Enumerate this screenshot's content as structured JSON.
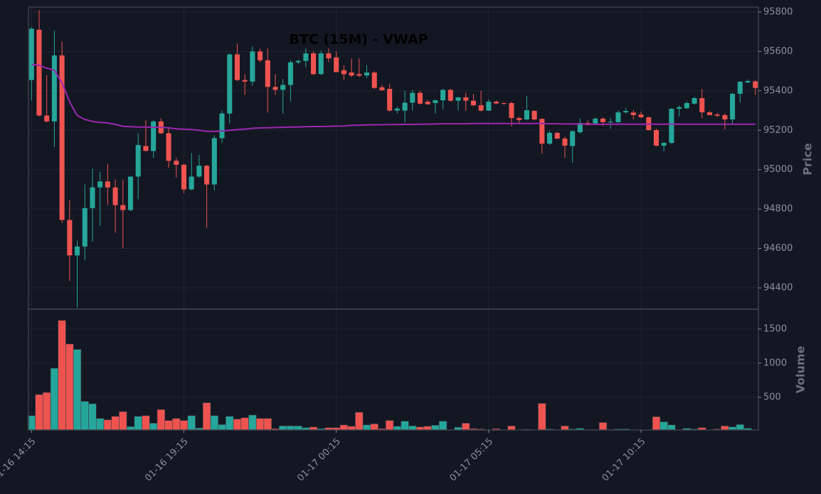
{
  "chart_data": {
    "type": "candlestick",
    "title": "BTC (15M) - VWAP",
    "ylabel": "Price",
    "up_color": "#26a69a",
    "down_color": "#ef5350",
    "grid": true,
    "xlim": [
      -0.4,
      95.4
    ],
    "xticks": [
      {
        "value": 0,
        "label": "01-16 14:15"
      },
      {
        "value": 20,
        "label": "01-16 19:15"
      },
      {
        "value": 40,
        "label": "01-17 00:15"
      },
      {
        "value": 60,
        "label": "01-17 05:15"
      },
      {
        "value": 80,
        "label": "01-17 10:15"
      }
    ],
    "ylim": [
      94292,
      95825
    ],
    "yticks": [
      94400,
      94600,
      94800,
      95000,
      95200,
      95400,
      95600,
      95800
    ],
    "open": [
      95455,
      95710,
      95275,
      95245,
      95580,
      94745,
      94565,
      94610,
      94805,
      94910,
      94940,
      94910,
      94820,
      94795,
      94965,
      95120,
      95095,
      95245,
      95185,
      95045,
      95025,
      94900,
      94965,
      95020,
      94925,
      95160,
      95285,
      95585,
      95455,
      95447,
      95600,
      95555,
      95420,
      95405,
      95430,
      95545,
      95552,
      95590,
      95485,
      95590,
      95570,
      95505,
      95493,
      95485,
      95478,
      95493,
      95418,
      95410,
      95300,
      95300,
      95340,
      95390,
      95345,
      95338,
      95352,
      95405,
      95350,
      95367,
      95350,
      95327,
      95300,
      95345,
      95338,
      95338,
      95262,
      95255,
      95298,
      95258,
      95132,
      95187,
      95158,
      95120,
      95190,
      95237,
      95235,
      95259,
      95240,
      95241,
      95291,
      95290,
      95280,
      95266,
      95201,
      95122,
      95136,
      95309,
      95312,
      95335,
      95363,
      95291,
      95280,
      95277,
      95255,
      95385,
      95443,
      95448
    ],
    "high": [
      95725,
      95810,
      95480,
      95705,
      95650,
      94845,
      94640,
      94925,
      95005,
      94990,
      95030,
      94950,
      94950,
      94965,
      95185,
      95250,
      95250,
      95260,
      95210,
      95060,
      95030,
      95085,
      95075,
      95025,
      95175,
      95300,
      95590,
      95640,
      95485,
      95625,
      95615,
      95615,
      95485,
      95460,
      95555,
      95558,
      95615,
      95600,
      95605,
      95615,
      95600,
      95530,
      95565,
      95565,
      95530,
      95500,
      95430,
      95435,
      95320,
      95400,
      95405,
      95400,
      95355,
      95357,
      95410,
      95410,
      95368,
      95390,
      95385,
      95400,
      95357,
      95352,
      95342,
      95345,
      95268,
      95375,
      95302,
      95260,
      95198,
      95190,
      95168,
      95200,
      95260,
      95250,
      95265,
      95265,
      95262,
      95302,
      95312,
      95302,
      95295,
      95268,
      95208,
      95140,
      95313,
      95325,
      95345,
      95370,
      95410,
      95298,
      95288,
      95285,
      95390,
      95450,
      95458,
      95455
    ],
    "low": [
      95350,
      95270,
      95240,
      95115,
      94730,
      94435,
      94300,
      94540,
      94635,
      94715,
      94820,
      94680,
      94600,
      94790,
      94850,
      95095,
      95060,
      95180,
      95010,
      94960,
      94880,
      94895,
      94960,
      94705,
      94895,
      95135,
      95235,
      95450,
      95380,
      95425,
      95545,
      95290,
      95380,
      95285,
      95345,
      95535,
      95520,
      95480,
      95480,
      95545,
      95495,
      95455,
      95470,
      95470,
      95465,
      95410,
      95400,
      95295,
      95285,
      95240,
      95300,
      95330,
      95330,
      95285,
      95305,
      95345,
      95300,
      95300,
      95320,
      95295,
      95298,
      95333,
      95328,
      95220,
      95237,
      95250,
      95250,
      95080,
      95125,
      95155,
      95060,
      95035,
      95183,
      95225,
      95232,
      95222,
      95208,
      95237,
      95285,
      95255,
      95262,
      95198,
      95118,
      95093,
      95130,
      95270,
      95308,
      95330,
      95262,
      95277,
      95266,
      95205,
      95230,
      95340,
      95440,
      95380
    ],
    "close": [
      95715,
      95275,
      95245,
      95580,
      94745,
      94565,
      94610,
      94805,
      94910,
      94940,
      94910,
      94820,
      94795,
      94965,
      95125,
      95095,
      95245,
      95185,
      95045,
      95025,
      94900,
      94965,
      95020,
      94925,
      95160,
      95285,
      95585,
      95455,
      95447,
      95600,
      95555,
      95420,
      95405,
      95430,
      95545,
      95552,
      95590,
      95485,
      95590,
      95565,
      95495,
      95485,
      95478,
      95477,
      95493,
      95415,
      95403,
      95300,
      95310,
      95340,
      95390,
      95335,
      95332,
      95352,
      95405,
      95350,
      95367,
      95350,
      95327,
      95300,
      95345,
      95336,
      95335,
      95262,
      95252,
      95302,
      95255,
      95132,
      95187,
      95158,
      95122,
      95195,
      95237,
      95227,
      95259,
      95241,
      95244,
      95291,
      95298,
      95277,
      95266,
      95201,
      95122,
      95136,
      95309,
      95317,
      95338,
      95363,
      95291,
      95277,
      95274,
      95255,
      95385,
      95446,
      95450,
      95415
    ],
    "vwap_color": "#9c27b0",
    "vwap": [
      95535,
      95530,
      95515,
      95505,
      95440,
      95345,
      95275,
      95255,
      95245,
      95240,
      95237,
      95230,
      95220,
      95218,
      95216,
      95216,
      95215,
      95215,
      95212,
      95208,
      95205,
      95204,
      95200,
      95195,
      95194,
      95196,
      95200,
      95203,
      95206,
      95210,
      95212,
      95213,
      95214,
      95215,
      95216,
      95217,
      95218,
      95219,
      95219,
      95220,
      95221,
      95222,
      95225,
      95226,
      95227,
      95228,
      95228,
      95229,
      95229,
      95230,
      95230,
      95231,
      95231,
      95232,
      95233,
      95233,
      95233,
      95233,
      95234,
      95234,
      95234,
      95234,
      95234,
      95234,
      95234,
      95234,
      95234,
      95234,
      95233,
      95233,
      95232,
      95232,
      95232,
      95231,
      95230,
      95230,
      95231,
      95231,
      95231,
      95231,
      95231,
      95231,
      95231,
      95231,
      95231,
      95231,
      95231,
      95231,
      95231,
      95231,
      95231,
      95231,
      95231,
      95231,
      95231,
      95231
    ],
    "volume": {
      "ylabel": "Volume",
      "ylim": [
        20,
        1790
      ],
      "yticks": [
        500,
        1000,
        1500
      ],
      "values": [
        230,
        540,
        570,
        925,
        1625,
        1280,
        1200,
        440,
        405,
        190,
        170,
        220,
        290,
        70,
        220,
        230,
        120,
        320,
        160,
        190,
        160,
        230,
        50,
        420,
        230,
        100,
        220,
        180,
        200,
        240,
        190,
        190,
        40,
        80,
        80,
        80,
        55,
        65,
        40,
        55,
        55,
        95,
        75,
        280,
        95,
        110,
        40,
        160,
        75,
        150,
        80,
        65,
        75,
        90,
        150,
        25,
        60,
        120,
        40,
        35,
        22,
        40,
        22,
        80,
        22,
        30,
        22,
        410,
        35,
        25,
        80,
        35,
        45,
        25,
        25,
        130,
        25,
        35,
        35,
        22,
        22,
        25,
        215,
        140,
        95,
        25,
        45,
        35,
        55,
        22,
        35,
        80,
        65,
        100,
        45,
        22
      ]
    }
  }
}
